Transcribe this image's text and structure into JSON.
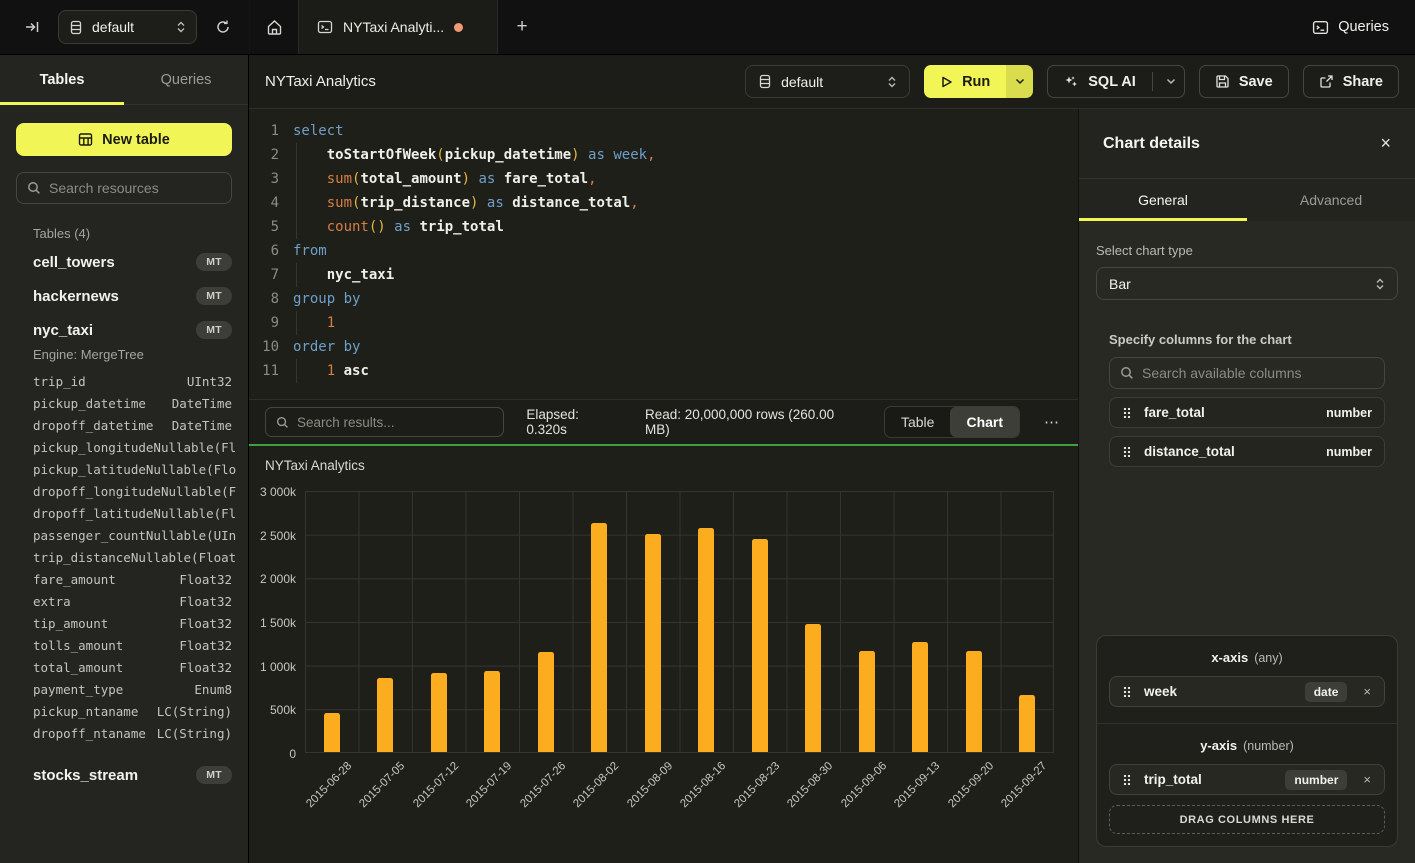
{
  "icons": {
    "close": "×",
    "plus": "+",
    "overflow": "⋯",
    "remove": "×"
  },
  "colors": {
    "accent_yellow": "#f2f556",
    "run_caret_yellow": "#d8dc4d",
    "bar_orange": "#fbad1f",
    "focus_green": "#3f9f42",
    "tab_dot_orange": "#ef9a70",
    "panel_bg": "#282923",
    "sidebar_bg": "#242521",
    "editor_bg": "#1e1f19",
    "topbar_bg": "#101110"
  },
  "topbar": {
    "database_selector": {
      "value": "default"
    },
    "tab": {
      "label": "NYTaxi Analyti...",
      "modified": true
    },
    "queries_label": "Queries"
  },
  "sidebar": {
    "tabs": [
      {
        "label": "Tables"
      },
      {
        "label": "Queries"
      }
    ],
    "active_tab": "Tables",
    "new_table_label": "New table",
    "search_placeholder": "Search resources",
    "section_label": "Tables (4)",
    "tables": [
      {
        "name": "cell_towers",
        "badge": "MT"
      },
      {
        "name": "hackernews",
        "badge": "MT"
      },
      {
        "name": "nyc_taxi",
        "badge": "MT",
        "engine": "Engine: MergeTree",
        "columns": [
          {
            "name": "trip_id",
            "type": "UInt32"
          },
          {
            "name": "pickup_datetime",
            "type": "DateTime"
          },
          {
            "name": "dropoff_datetime",
            "type": "DateTime"
          },
          {
            "name": "pickup_longitude",
            "type": "Nullable(Fl"
          },
          {
            "name": "pickup_latitude",
            "type": "Nullable(Flo"
          },
          {
            "name": "dropoff_longitude",
            "type": "Nullable(F"
          },
          {
            "name": "dropoff_latitude",
            "type": "Nullable(Fl"
          },
          {
            "name": "passenger_count",
            "type": "Nullable(UIn"
          },
          {
            "name": "trip_distance",
            "type": "Nullable(Float"
          },
          {
            "name": "fare_amount",
            "type": "Float32"
          },
          {
            "name": "extra",
            "type": "Float32"
          },
          {
            "name": "tip_amount",
            "type": "Float32"
          },
          {
            "name": "tolls_amount",
            "type": "Float32"
          },
          {
            "name": "total_amount",
            "type": "Float32"
          },
          {
            "name": "payment_type",
            "type": "Enum8"
          },
          {
            "name": "pickup_ntaname",
            "type": "LC(String)"
          },
          {
            "name": "dropoff_ntaname",
            "type": "LC(String)"
          }
        ]
      },
      {
        "name": "stocks_stream",
        "badge": "MT"
      }
    ]
  },
  "toolbar": {
    "title": "NYTaxi Analytics",
    "database_value": "default",
    "run_label": "Run",
    "sql_ai_label": "SQL AI",
    "save_label": "Save",
    "share_label": "Share"
  },
  "editor": {
    "lines": [
      {
        "num": "1",
        "indent": false,
        "tokens": [
          [
            "kw",
            "select"
          ]
        ]
      },
      {
        "num": "2",
        "indent": true,
        "tokens": [
          [
            "txt",
            "    "
          ],
          [
            "fn",
            "toStartOfWeek"
          ],
          [
            "par",
            "("
          ],
          [
            "id",
            "pickup_datetime"
          ],
          [
            "par",
            ")"
          ],
          [
            "txt",
            " "
          ],
          [
            "kw",
            "as"
          ],
          [
            "txt",
            " "
          ],
          [
            "kw",
            "week"
          ],
          [
            "pun",
            ","
          ]
        ]
      },
      {
        "num": "3",
        "indent": true,
        "tokens": [
          [
            "txt",
            "    "
          ],
          [
            "agg",
            "sum"
          ],
          [
            "par",
            "("
          ],
          [
            "id",
            "total_amount"
          ],
          [
            "par",
            ")"
          ],
          [
            "txt",
            " "
          ],
          [
            "kw",
            "as"
          ],
          [
            "txt",
            " "
          ],
          [
            "id",
            "fare_total"
          ],
          [
            "pun",
            ","
          ]
        ]
      },
      {
        "num": "4",
        "indent": true,
        "tokens": [
          [
            "txt",
            "    "
          ],
          [
            "agg",
            "sum"
          ],
          [
            "par",
            "("
          ],
          [
            "id",
            "trip_distance"
          ],
          [
            "par",
            ")"
          ],
          [
            "txt",
            " "
          ],
          [
            "kw",
            "as"
          ],
          [
            "txt",
            " "
          ],
          [
            "id",
            "distance_total"
          ],
          [
            "pun",
            ","
          ]
        ]
      },
      {
        "num": "5",
        "indent": true,
        "tokens": [
          [
            "txt",
            "    "
          ],
          [
            "agg",
            "count"
          ],
          [
            "par",
            "()"
          ],
          [
            "txt",
            " "
          ],
          [
            "kw",
            "as"
          ],
          [
            "txt",
            " "
          ],
          [
            "id",
            "trip_total"
          ]
        ]
      },
      {
        "num": "6",
        "indent": false,
        "tokens": [
          [
            "kw",
            "from"
          ]
        ]
      },
      {
        "num": "7",
        "indent": true,
        "tokens": [
          [
            "txt",
            "    "
          ],
          [
            "id",
            "nyc_taxi"
          ]
        ]
      },
      {
        "num": "8",
        "indent": false,
        "tokens": [
          [
            "kw",
            "group by"
          ]
        ]
      },
      {
        "num": "9",
        "indent": true,
        "tokens": [
          [
            "txt",
            "    "
          ],
          [
            "num",
            "1"
          ]
        ]
      },
      {
        "num": "10",
        "indent": false,
        "tokens": [
          [
            "kw",
            "order by"
          ]
        ]
      },
      {
        "num": "11",
        "indent": true,
        "tokens": [
          [
            "txt",
            "    "
          ],
          [
            "num",
            "1"
          ],
          [
            "txt",
            " "
          ],
          [
            "id",
            "asc"
          ]
        ]
      }
    ]
  },
  "results_bar": {
    "search_placeholder": "Search results...",
    "elapsed": "Elapsed: 0.320s",
    "read": "Read: 20,000,000 rows (260.00 MB)",
    "views": [
      "Table",
      "Chart"
    ],
    "active_view": "Chart"
  },
  "chart_data": {
    "type": "bar",
    "title": "NYTaxi Analytics",
    "categories": [
      "2015-06-28",
      "2015-07-05",
      "2015-07-12",
      "2015-07-19",
      "2015-07-26",
      "2015-08-02",
      "2015-08-09",
      "2015-08-16",
      "2015-08-23",
      "2015-08-30",
      "2015-09-06",
      "2015-09-13",
      "2015-09-20",
      "2015-09-27"
    ],
    "series": [
      {
        "name": "trip_total",
        "values": [
          450000,
          850000,
          900000,
          930000,
          1150000,
          2620000,
          2500000,
          2560000,
          2440000,
          1470000,
          1160000,
          1260000,
          1160000,
          650000
        ]
      }
    ],
    "xlabel": "",
    "ylabel": "",
    "ylim": [
      0,
      3000000
    ],
    "ytick_labels_top_down": [
      "3 000k",
      "2 500k",
      "2 000k",
      "1 500k",
      "1 000k",
      "500k",
      "0"
    ],
    "grid": true,
    "legend": "none",
    "bar_color": "#fbad1f"
  },
  "panel": {
    "title": "Chart details",
    "tabs": [
      {
        "label": "General"
      },
      {
        "label": "Advanced"
      }
    ],
    "active_tab": "General",
    "chart_type_label": "Select chart type",
    "chart_type_value": "Bar",
    "columns_label": "Specify columns for the chart",
    "columns_search_placeholder": "Search available columns",
    "available_columns": [
      {
        "name": "fare_total",
        "type": "number"
      },
      {
        "name": "distance_total",
        "type": "number"
      }
    ],
    "x_axis": {
      "label": "x-axis",
      "hint": "(any)",
      "columns": [
        {
          "name": "week",
          "type": "date"
        }
      ]
    },
    "y_axis": {
      "label": "y-axis",
      "hint": "(number)",
      "columns": [
        {
          "name": "trip_total",
          "type": "number"
        }
      ]
    },
    "drop_zone_label": "DRAG COLUMNS HERE"
  }
}
